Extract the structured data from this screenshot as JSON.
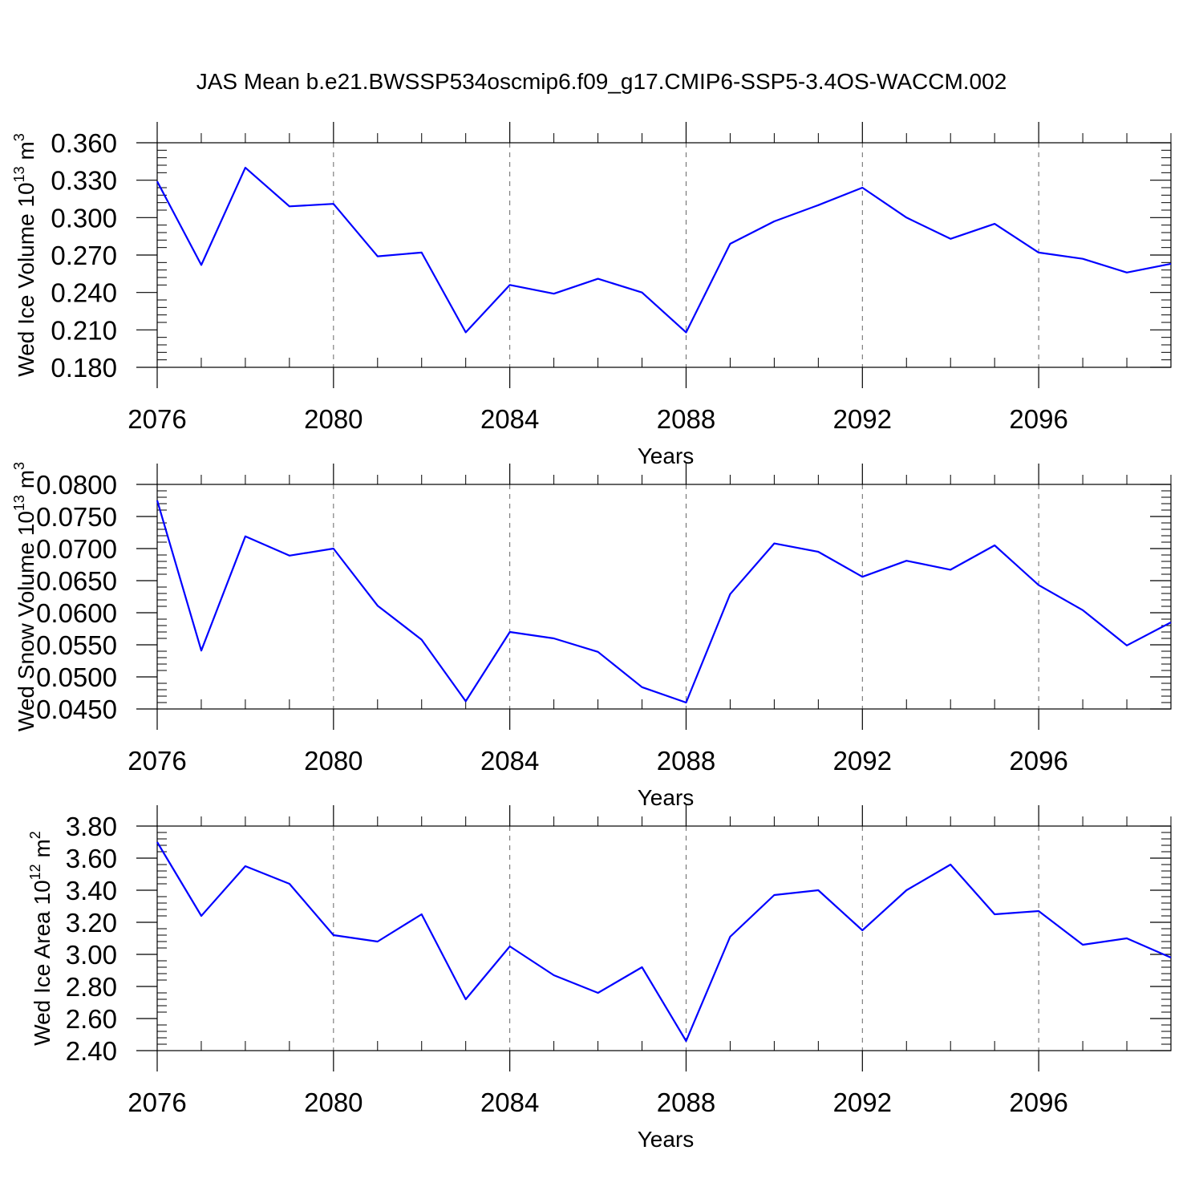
{
  "figure": {
    "title": "JAS Mean b.e21.BWSSP534oscmip6.f09_g17.CMIP6-SSP5-3.4OS-WACCM.002"
  },
  "colors": {
    "line": "#0000ff",
    "axis": "#000000",
    "grid": "#666666"
  },
  "chart_data": [
    {
      "type": "line",
      "title": "",
      "xlabel": "Years",
      "ylabel_main": "Wed Ice Volume 10",
      "ylabel_exp": "13",
      "ylabel_unit": " m",
      "ylabel_unit_exp": "3",
      "xlim": [
        2076,
        2099
      ],
      "ylim": [
        0.18,
        0.36
      ],
      "xticks": [
        2076,
        2080,
        2084,
        2088,
        2092,
        2096
      ],
      "yticks": [
        0.18,
        0.21,
        0.24,
        0.27,
        0.3,
        0.33,
        0.36
      ],
      "ytick_labels": [
        "0.180",
        "0.210",
        "0.240",
        "0.270",
        "0.300",
        "0.330",
        "0.360"
      ],
      "x": [
        2076,
        2077,
        2078,
        2079,
        2080,
        2081,
        2082,
        2083,
        2084,
        2085,
        2086,
        2087,
        2088,
        2089,
        2090,
        2091,
        2092,
        2093,
        2094,
        2095,
        2096,
        2097,
        2098,
        2099
      ],
      "values": [
        0.329,
        0.262,
        0.34,
        0.309,
        0.311,
        0.269,
        0.272,
        0.208,
        0.246,
        0.239,
        0.251,
        0.24,
        0.208,
        0.279,
        0.297,
        0.31,
        0.324,
        0.3,
        0.283,
        0.295,
        0.272,
        0.267,
        0.256,
        0.263
      ]
    },
    {
      "type": "line",
      "title": "",
      "xlabel": "Years",
      "ylabel_main": "Wed Snow Volume 10",
      "ylabel_exp": "13",
      "ylabel_unit": " m",
      "ylabel_unit_exp": "3",
      "xlim": [
        2076,
        2099
      ],
      "ylim": [
        0.045,
        0.08
      ],
      "xticks": [
        2076,
        2080,
        2084,
        2088,
        2092,
        2096
      ],
      "yticks": [
        0.045,
        0.05,
        0.055,
        0.06,
        0.065,
        0.07,
        0.075,
        0.08
      ],
      "ytick_labels": [
        "0.0450",
        "0.0500",
        "0.0550",
        "0.0600",
        "0.0650",
        "0.0700",
        "0.0750",
        "0.0800"
      ],
      "x": [
        2076,
        2077,
        2078,
        2079,
        2080,
        2081,
        2082,
        2083,
        2084,
        2085,
        2086,
        2087,
        2088,
        2089,
        2090,
        2091,
        2092,
        2093,
        2094,
        2095,
        2096,
        2097,
        2098,
        2099
      ],
      "values": [
        0.0775,
        0.0541,
        0.0719,
        0.0689,
        0.07,
        0.0611,
        0.0558,
        0.0462,
        0.057,
        0.056,
        0.0539,
        0.0484,
        0.046,
        0.0629,
        0.0708,
        0.0695,
        0.0656,
        0.0681,
        0.0667,
        0.0705,
        0.0643,
        0.0604,
        0.0549,
        0.0585
      ]
    },
    {
      "type": "line",
      "title": "",
      "xlabel": "Years",
      "ylabel_main": "Wed Ice Area 10",
      "ylabel_exp": "12",
      "ylabel_unit": " m",
      "ylabel_unit_exp": "2",
      "xlim": [
        2076,
        2099
      ],
      "ylim": [
        2.4,
        3.8
      ],
      "xticks": [
        2076,
        2080,
        2084,
        2088,
        2092,
        2096
      ],
      "yticks": [
        2.4,
        2.6,
        2.8,
        3.0,
        3.2,
        3.4,
        3.6,
        3.8
      ],
      "ytick_labels": [
        "2.40",
        "2.60",
        "2.80",
        "3.00",
        "3.20",
        "3.40",
        "3.60",
        "3.80"
      ],
      "x": [
        2076,
        2077,
        2078,
        2079,
        2080,
        2081,
        2082,
        2083,
        2084,
        2085,
        2086,
        2087,
        2088,
        2089,
        2090,
        2091,
        2092,
        2093,
        2094,
        2095,
        2096,
        2097,
        2098,
        2099
      ],
      "values": [
        3.7,
        3.24,
        3.55,
        3.44,
        3.12,
        3.08,
        3.25,
        2.72,
        3.05,
        2.87,
        2.76,
        2.92,
        2.46,
        3.11,
        3.37,
        3.4,
        3.15,
        3.4,
        3.56,
        3.25,
        3.27,
        3.06,
        3.1,
        2.98
      ]
    }
  ]
}
